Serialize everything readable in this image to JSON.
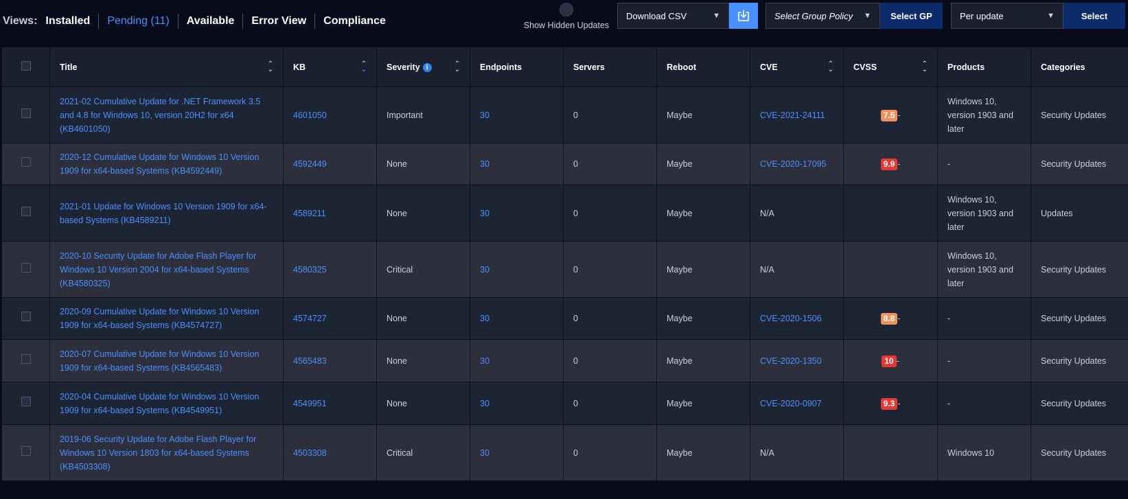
{
  "views": {
    "label": "Views:",
    "tabs": [
      {
        "label": "Installed",
        "active": false
      },
      {
        "label": "Pending (11)",
        "active": true
      },
      {
        "label": "Available",
        "active": false
      },
      {
        "label": "Error View",
        "active": false
      },
      {
        "label": "Compliance",
        "active": false
      }
    ]
  },
  "toolbar": {
    "show_hidden_label": "Show Hidden Updates",
    "download_select": "Download CSV",
    "group_policy_placeholder": "Select Group Policy",
    "select_gp_label": "Select GP",
    "per_update_select": "Per update",
    "select_label": "Select"
  },
  "table": {
    "columns": [
      "Title",
      "KB",
      "Severity",
      "Endpoints",
      "Servers",
      "Reboot",
      "CVE",
      "CVSS",
      "Products",
      "Categories"
    ],
    "rows": [
      {
        "title": "2021-02 Cumulative Update for .NET Framework 3.5 and 4.8 for Windows 10, version 20H2 for x64 (KB4601050)",
        "kb": "4601050",
        "severity": "Important",
        "endpoints": "30",
        "servers": "0",
        "reboot": "Maybe",
        "cve": "CVE-2021-24111",
        "cvss": "7.5",
        "cvss_color": "#f0905a",
        "products": "Windows 10, version 1903 and later",
        "categories": "Security Updates"
      },
      {
        "title": "2020-12 Cumulative Update for Windows 10 Version 1909 for x64-based Systems (KB4592449)",
        "kb": "4592449",
        "severity": "None",
        "endpoints": "30",
        "servers": "0",
        "reboot": "Maybe",
        "cve": "CVE-2020-17095",
        "cvss": "9.9",
        "cvss_color": "#e53935",
        "products": "-",
        "categories": "Security Updates"
      },
      {
        "title": "2021-01 Update for Windows 10 Version 1909 for x64-based Systems (KB4589211)",
        "kb": "4589211",
        "severity": "None",
        "endpoints": "30",
        "servers": "0",
        "reboot": "Maybe",
        "cve": "N/A",
        "cvss": "",
        "cvss_color": "",
        "products": "Windows 10, version 1903 and later",
        "categories": "Updates"
      },
      {
        "title": "2020-10 Security Update for Adobe Flash Player for Windows 10 Version 2004 for x64-based Systems (KB4580325)",
        "kb": "4580325",
        "severity": "Critical",
        "endpoints": "30",
        "servers": "0",
        "reboot": "Maybe",
        "cve": "N/A",
        "cvss": "",
        "cvss_color": "",
        "products": "Windows 10, version 1903 and later",
        "categories": "Security Updates"
      },
      {
        "title": "2020-09 Cumulative Update for Windows 10 Version 1909 for x64-based Systems (KB4574727)",
        "kb": "4574727",
        "severity": "None",
        "endpoints": "30",
        "servers": "0",
        "reboot": "Maybe",
        "cve": "CVE-2020-1506",
        "cvss": "8.8",
        "cvss_color": "#f0905a",
        "products": "-",
        "categories": "Security Updates"
      },
      {
        "title": "2020-07 Cumulative Update for Windows 10 Version 1909 for x64-based Systems (KB4565483)",
        "kb": "4565483",
        "severity": "None",
        "endpoints": "30",
        "servers": "0",
        "reboot": "Maybe",
        "cve": "CVE-2020-1350",
        "cvss": "10",
        "cvss_color": "#e53935",
        "products": "-",
        "categories": "Security Updates"
      },
      {
        "title": "2020-04 Cumulative Update for Windows 10 Version 1909 for x64-based Systems (KB4549951)",
        "kb": "4549951",
        "severity": "None",
        "endpoints": "30",
        "servers": "0",
        "reboot": "Maybe",
        "cve": "CVE-2020-0907",
        "cvss": "9.3",
        "cvss_color": "#e53935",
        "products": "-",
        "categories": "Security Updates"
      },
      {
        "title": "2019-06 Security Update for Adobe Flash Player for Windows 10 Version 1803 for x64-based Systems (KB4503308)",
        "kb": "4503308",
        "severity": "Critical",
        "endpoints": "30",
        "servers": "0",
        "reboot": "Maybe",
        "cve": "N/A",
        "cvss": "",
        "cvss_color": "",
        "products": "Windows 10",
        "categories": "Security Updates"
      }
    ]
  }
}
